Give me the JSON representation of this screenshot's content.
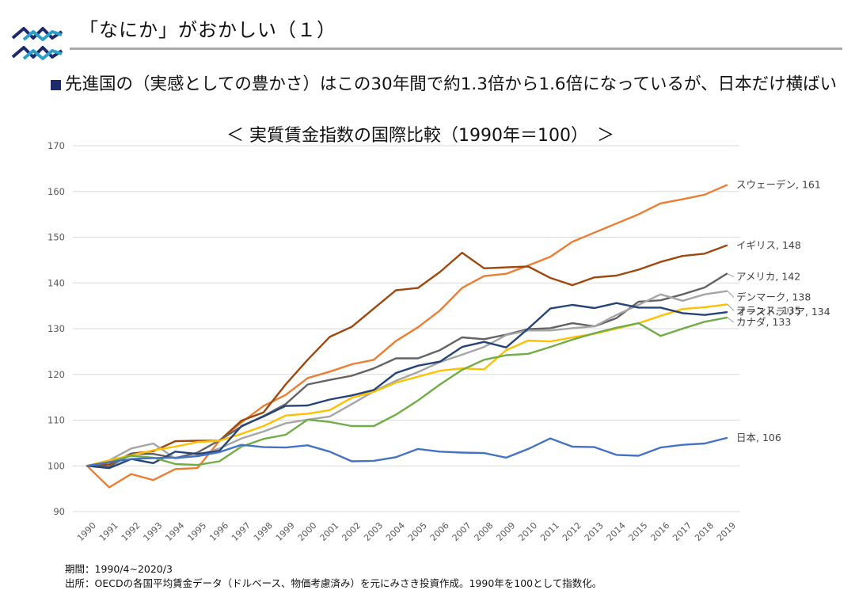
{
  "header": {
    "title": "「なにか」がおかしい（１）"
  },
  "bullet": {
    "text": "先進国の（実感としての豊かさ）はこの30年間で約1.3倍から1.6倍になっているが、日本だけ横ばい"
  },
  "chart_data": {
    "type": "line",
    "title": "＜ 実質賃金指数の国際比較（1990年＝100）　＞",
    "xlabel": "",
    "ylabel": "",
    "ylim": [
      90,
      170
    ],
    "yticks": [
      90,
      100,
      110,
      120,
      130,
      140,
      150,
      160,
      170
    ],
    "grid": true,
    "legend": "end-labels",
    "categories": [
      "1990",
      "1991",
      "1992",
      "1993",
      "1994",
      "1995",
      "1996",
      "1997",
      "1998",
      "1999",
      "2000",
      "2001",
      "2002",
      "2003",
      "2004",
      "2005",
      "2006",
      "2007",
      "2008",
      "2009",
      "2010",
      "2011",
      "2012",
      "2013",
      "2014",
      "2015",
      "2016",
      "2017",
      "2018",
      "2019"
    ],
    "series": [
      {
        "name": "スウェーデン",
        "end_label": "スウェーデン, 161",
        "color": "#ed7d31",
        "values": [
          100,
          95.3,
          98.2,
          96.9,
          99.3,
          99.5,
          105.5,
          109.5,
          113.1,
          115.5,
          119.2,
          120.6,
          122.2,
          123.2,
          127.3,
          130.3,
          134.0,
          138.9,
          141.5,
          142.0,
          143.8,
          145.7,
          149.0,
          151.0,
          153.0,
          155.0,
          157.4,
          158.3,
          159.3,
          161.4
        ]
      },
      {
        "name": "イギリス",
        "end_label": "イギリス, 148",
        "color": "#9e480e",
        "values": [
          100,
          100.3,
          102.7,
          103.2,
          105.4,
          105.5,
          105.5,
          109.9,
          111.7,
          117.8,
          123.2,
          128.2,
          130.4,
          134.4,
          138.4,
          138.9,
          142.4,
          146.6,
          143.2,
          143.4,
          143.6,
          141.1,
          139.5,
          141.2,
          141.6,
          142.9,
          144.6,
          145.9,
          146.4,
          148.2
        ]
      },
      {
        "name": "アメリカ",
        "end_label": "アメリカ, 142",
        "color": "#636363",
        "values": [
          100,
          99.8,
          102.6,
          102.6,
          101.7,
          102.9,
          105.6,
          108.6,
          110.9,
          113.5,
          117.8,
          118.8,
          119.7,
          121.3,
          123.5,
          123.5,
          125.3,
          128.1,
          127.7,
          128.7,
          129.9,
          130.1,
          131.2,
          130.5,
          132.3,
          135.9,
          136.2,
          137.5,
          139.0,
          142.0
        ]
      },
      {
        "name": "デンマーク",
        "end_label": "デンマーク, 138",
        "color": "#a5a5a5",
        "values": [
          100,
          101.2,
          103.8,
          104.9,
          101.6,
          102.2,
          103.8,
          106.0,
          107.5,
          109.3,
          110.1,
          110.8,
          113.5,
          116.3,
          118.6,
          120.5,
          122.7,
          124.3,
          126.0,
          128.6,
          129.6,
          129.6,
          130.1,
          130.5,
          133.0,
          135.2,
          137.5,
          136.1,
          137.5,
          138.2
        ]
      },
      {
        "name": "フランス",
        "end_label": "フランス, 135",
        "color": "#ffc000",
        "values": [
          100,
          101.2,
          102.3,
          103.4,
          104.2,
          105.2,
          105.5,
          107.0,
          108.7,
          111.0,
          111.4,
          112.2,
          114.9,
          116.2,
          118.2,
          119.5,
          120.8,
          121.3,
          121.1,
          125.3,
          127.4,
          127.2,
          128.1,
          128.9,
          130.0,
          131.2,
          132.8,
          134.3,
          134.7,
          135.3
        ]
      },
      {
        "name": "オーストラリア",
        "end_label": "オーストラリア, 134",
        "color": "#264478",
        "values": [
          100,
          99.5,
          101.5,
          100.6,
          103.1,
          102.6,
          103.3,
          108.7,
          110.8,
          113.1,
          113.2,
          114.5,
          115.4,
          116.6,
          120.3,
          121.9,
          122.8,
          126.0,
          127.1,
          125.9,
          130.0,
          134.4,
          135.2,
          134.5,
          135.6,
          134.6,
          134.6,
          133.4,
          133.0,
          133.6
        ]
      },
      {
        "name": "カナダ",
        "end_label": "カナダ, 133",
        "color": "#70ad47",
        "values": [
          100,
          100.8,
          102.2,
          101.8,
          100.4,
          100.2,
          101.0,
          104.2,
          105.9,
          106.8,
          110.1,
          109.6,
          108.7,
          108.7,
          111.2,
          114.3,
          117.8,
          121.0,
          123.2,
          124.2,
          124.5,
          126.0,
          127.6,
          129.0,
          130.2,
          131.2,
          128.4,
          130.0,
          131.5,
          132.4
        ]
      },
      {
        "name": "日本",
        "end_label": "日本, 106",
        "color": "#4472c4",
        "values": [
          100,
          100.8,
          101.5,
          101.7,
          101.8,
          102.1,
          103.0,
          104.6,
          104.1,
          104.0,
          104.5,
          103.1,
          101.0,
          101.1,
          101.9,
          103.7,
          103.1,
          102.9,
          102.8,
          101.8,
          103.7,
          106.0,
          104.2,
          104.1,
          102.4,
          102.2,
          104.0,
          104.6,
          104.9,
          106.1
        ]
      }
    ]
  },
  "footnotes": {
    "period": "期間：1990/4~2020/3",
    "source": "出所：OECDの各国平均賃金データ（ドルベース、物価考慮済み）を元にみさき投資作成。1990年を100として指数化。"
  },
  "colors": {
    "bullet": "#1f2a6b",
    "logo_dark": "#1f2a6b",
    "logo_teal": "#2aa0c8",
    "rule": "#a9a9a9",
    "grid": "#d9d9d9",
    "axis_text": "#595959"
  }
}
